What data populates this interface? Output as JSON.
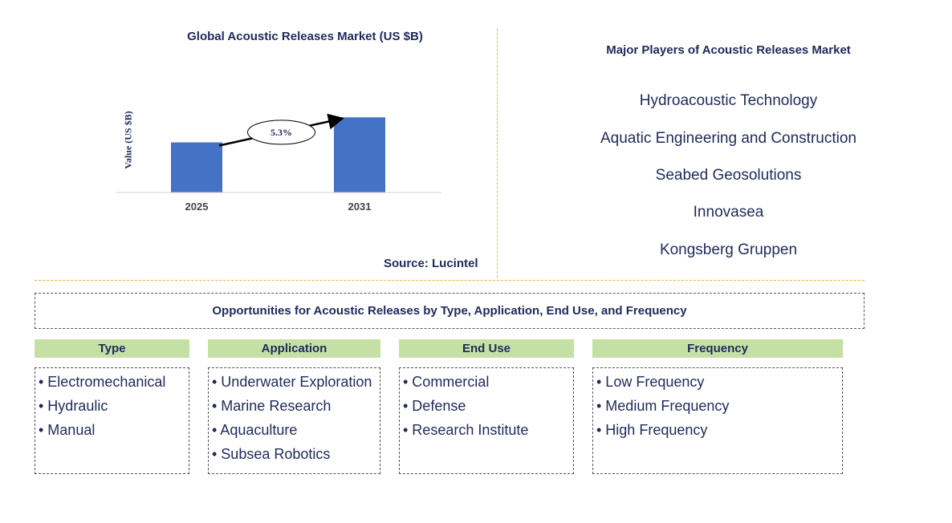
{
  "chart": {
    "title": "Global Acoustic Releases Market (US $B)",
    "ylabel": "Value (US $B)",
    "source": "Source: Lucintel"
  },
  "chart_data": {
    "type": "bar",
    "categories": [
      "2025",
      "2031"
    ],
    "values": [
      1.0,
      1.5
    ],
    "title": "Global Acoustic Releases Market (US $B)",
    "xlabel": "",
    "ylabel": "Value (US $B)",
    "annotation": "5.3%",
    "bar_color": "#4472c4",
    "ylim": [
      0,
      1.6
    ],
    "grid": false
  },
  "players": {
    "title": "Major Players of Acoustic Releases Market",
    "items": [
      "Hydroacoustic Technology",
      "Aquatic Engineering and Construction",
      "Seabed Geosolutions",
      "Innovasea",
      "Kongsberg Gruppen"
    ]
  },
  "opportunities": {
    "title": "Opportunities for Acoustic Releases by Type, Application, End Use, and Frequency",
    "categories": [
      {
        "header": "Type",
        "items": [
          "• Electromechanical",
          "• Hydraulic",
          "• Manual"
        ]
      },
      {
        "header": "Application",
        "items": [
          "• Underwater Exploration",
          "• Marine Research",
          "• Aquaculture",
          "• Subsea Robotics"
        ]
      },
      {
        "header": "End Use",
        "items": [
          "• Commercial",
          "• Defense",
          "• Research Institute"
        ]
      },
      {
        "header": "Frequency",
        "items": [
          "• Low Frequency",
          "• Medium Frequency",
          "• High Frequency"
        ]
      }
    ]
  },
  "colors": {
    "text": "#1f2a5a",
    "bar": "#4472c4",
    "header_fill": "#c5e0a5",
    "divider": "#e3b54a"
  }
}
